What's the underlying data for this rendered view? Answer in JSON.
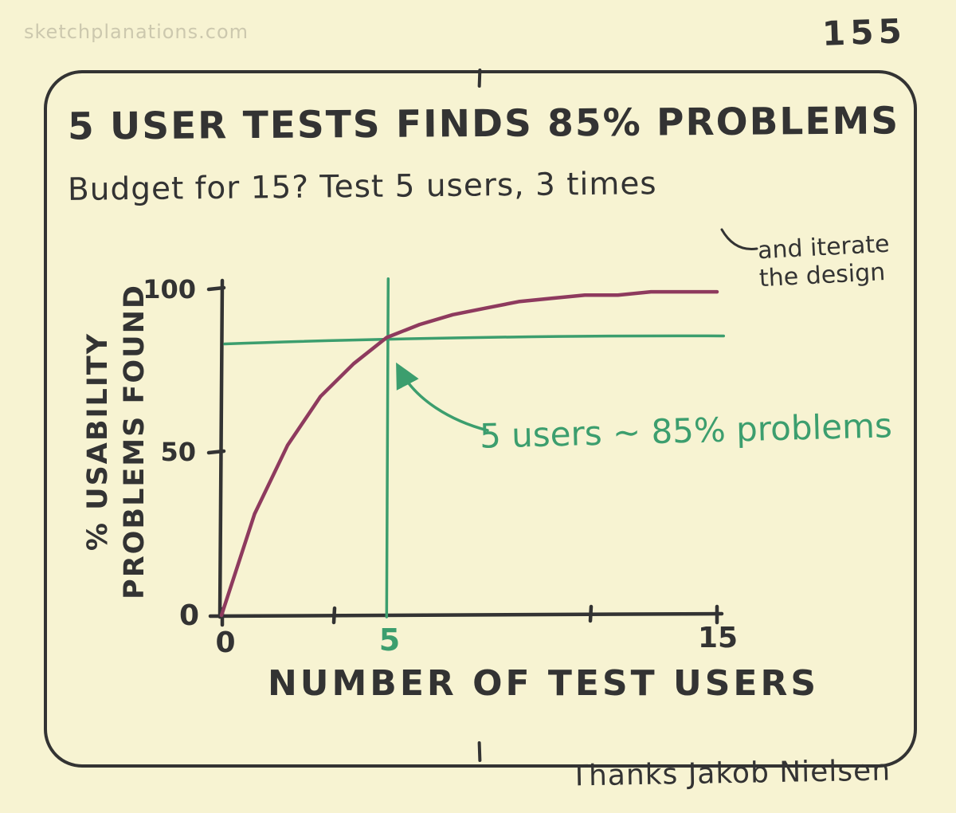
{
  "page": {
    "watermark": "sketchplanations.com",
    "issue_number": "155",
    "credit": "Thanks Jakob Nielsen"
  },
  "sketch": {
    "title": "5 USER TESTS FINDS 85% PROBLEMS",
    "subtitle": "Budget for 15? Test 5 users, 3 times",
    "side_note": {
      "line1": "and iterate",
      "line2": "the design"
    }
  },
  "chart_data": {
    "type": "line",
    "title": "5 USER TESTS FINDS 85% PROBLEMS",
    "xlabel": "NUMBER OF TEST USERS",
    "ylabel": "% USABILITY PROBLEMS FOUND",
    "ylabel_lines": [
      "% USABILITY",
      "PROBLEMS FOUND"
    ],
    "xlim": [
      0,
      15
    ],
    "ylim": [
      0,
      100
    ],
    "grid": false,
    "legend": false,
    "x": [
      0,
      1,
      2,
      3,
      4,
      5,
      6,
      7,
      8,
      9,
      10,
      11,
      12,
      13,
      14,
      15
    ],
    "series": [
      {
        "name": "% usability problems found",
        "color": "#8e3a5e",
        "values": [
          0,
          31,
          52,
          67,
          77,
          85,
          89,
          92,
          94,
          96,
          97,
          98,
          98,
          99,
          99,
          99
        ]
      }
    ],
    "reference_lines": {
      "horizontal_value": 85,
      "vertical_value": 5
    },
    "x_tick_labels": [
      "0",
      "5",
      "15"
    ],
    "y_tick_labels": [
      "100",
      "50",
      "0"
    ],
    "annotation": "5 users ~ 85% problems",
    "colors": {
      "ink": "#333333",
      "accent_green": "#3c9e6e",
      "curve": "#8e3a5e",
      "background": "#f7f3d2"
    }
  }
}
